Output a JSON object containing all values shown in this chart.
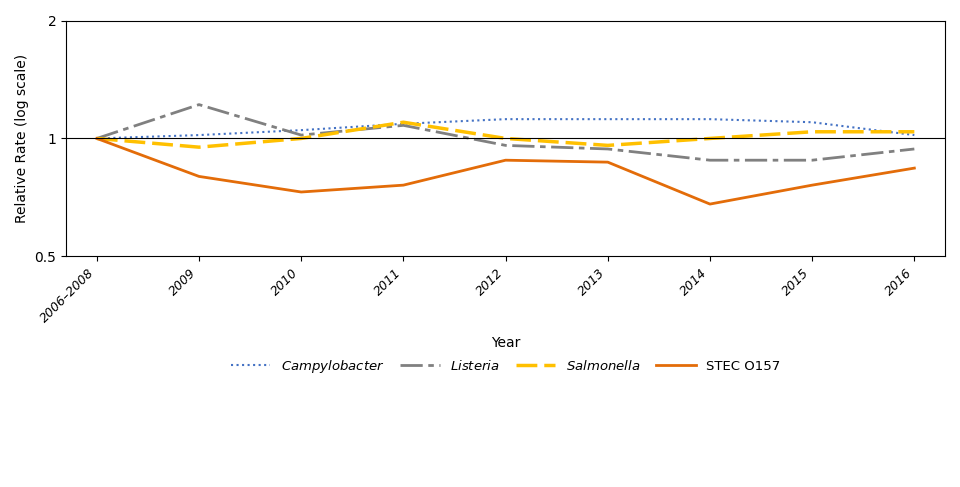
{
  "x_labels": [
    "2006–2008",
    "2009",
    "2010",
    "2011",
    "2012",
    "2013",
    "2014",
    "2015",
    "2016"
  ],
  "x_positions": [
    0,
    1,
    2,
    3,
    4,
    5,
    6,
    7,
    8
  ],
  "campylobacter": [
    1.0,
    1.02,
    1.05,
    1.09,
    1.12,
    1.12,
    1.12,
    1.1,
    1.02
  ],
  "listeria": [
    1.0,
    1.22,
    1.02,
    1.08,
    0.96,
    0.94,
    0.88,
    0.88,
    0.94
  ],
  "salmonella": [
    1.0,
    0.95,
    1.0,
    1.1,
    1.0,
    0.96,
    1.0,
    1.04,
    1.04
  ],
  "stec_o157": [
    1.0,
    0.8,
    0.73,
    0.76,
    0.88,
    0.87,
    0.68,
    0.76,
    0.84
  ],
  "campylobacter_color": "#4472C4",
  "listeria_color": "#808080",
  "salmonella_color": "#FFC000",
  "stec_color": "#E36C09",
  "background_color": "#FFFFFF",
  "ylabel": "Relative Rate (log scale)",
  "xlabel": "Year",
  "ylim_log": [
    0.5,
    2.0
  ],
  "yticks": [
    0.5,
    1.0,
    2.0
  ],
  "legend_labels": [
    "Campylobacter",
    "Listeria",
    "Salmonella",
    "STEC O157"
  ]
}
